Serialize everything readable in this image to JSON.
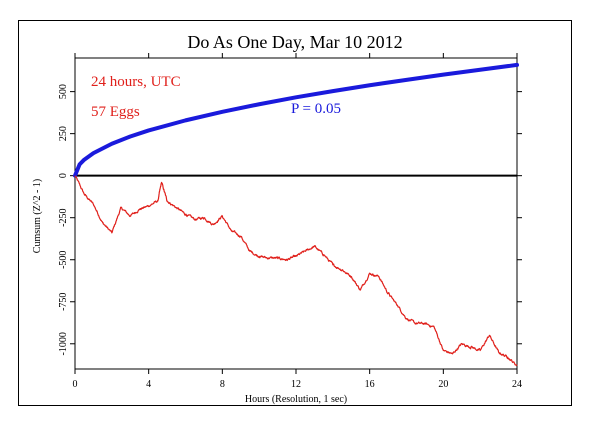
{
  "chart_data": {
    "type": "line",
    "title": "Do As One Day, Mar 10 2012",
    "xlabel": "Hours (Resolution, 1 sec)",
    "ylabel": "Cumsum (Z^2 - 1)",
    "xlim": [
      0,
      24
    ],
    "ylim": [
      -1150,
      700
    ],
    "x_ticks": [
      0,
      4,
      8,
      12,
      16,
      20,
      24
    ],
    "y_ticks": [
      -1000,
      -750,
      -500,
      -250,
      0,
      250,
      500
    ],
    "grid": false,
    "annotations": {
      "duration": "24 hours, UTC",
      "eggs": "57 Eggs",
      "p_value": "P = 0.05"
    },
    "colors": {
      "cumsum": "#e0201b",
      "envelope": "#1a1adc",
      "zero_line": "#000000"
    },
    "series": [
      {
        "role": "cumsum",
        "x": [
          0,
          0.5,
          1,
          1.5,
          2,
          2.5,
          3,
          3.5,
          4,
          4.5,
          4.7,
          5,
          5.5,
          6,
          6.5,
          7,
          7.5,
          8,
          8.5,
          9,
          9.5,
          10,
          10.5,
          11,
          11.5,
          12,
          12.5,
          13,
          13.5,
          14,
          14.5,
          15,
          15.5,
          16,
          16.5,
          17,
          17.5,
          18,
          18.5,
          19,
          19.5,
          20,
          20.5,
          21,
          21.5,
          22,
          22.5,
          23,
          23.5,
          24
        ],
        "y": [
          0,
          -110,
          -170,
          -280,
          -340,
          -190,
          -240,
          -200,
          -180,
          -150,
          -40,
          -150,
          -190,
          -230,
          -260,
          -250,
          -290,
          -240,
          -330,
          -360,
          -450,
          -480,
          -490,
          -490,
          -500,
          -480,
          -450,
          -420,
          -470,
          -530,
          -560,
          -600,
          -680,
          -580,
          -600,
          -700,
          -770,
          -850,
          -880,
          -880,
          -900,
          -1040,
          -1060,
          -1000,
          -1020,
          -1040,
          -950,
          -1050,
          -1080,
          -1130
        ]
      },
      {
        "role": "envelope",
        "x": [
          0,
          0.25,
          0.5,
          1,
          2,
          3,
          4,
          6,
          8,
          10,
          12,
          14,
          16,
          18,
          20,
          22,
          24
        ],
        "y": [
          0,
          67,
          95,
          134,
          190,
          233,
          269,
          329,
          380,
          425,
          466,
          503,
          538,
          570,
          601,
          630,
          659
        ]
      }
    ]
  }
}
